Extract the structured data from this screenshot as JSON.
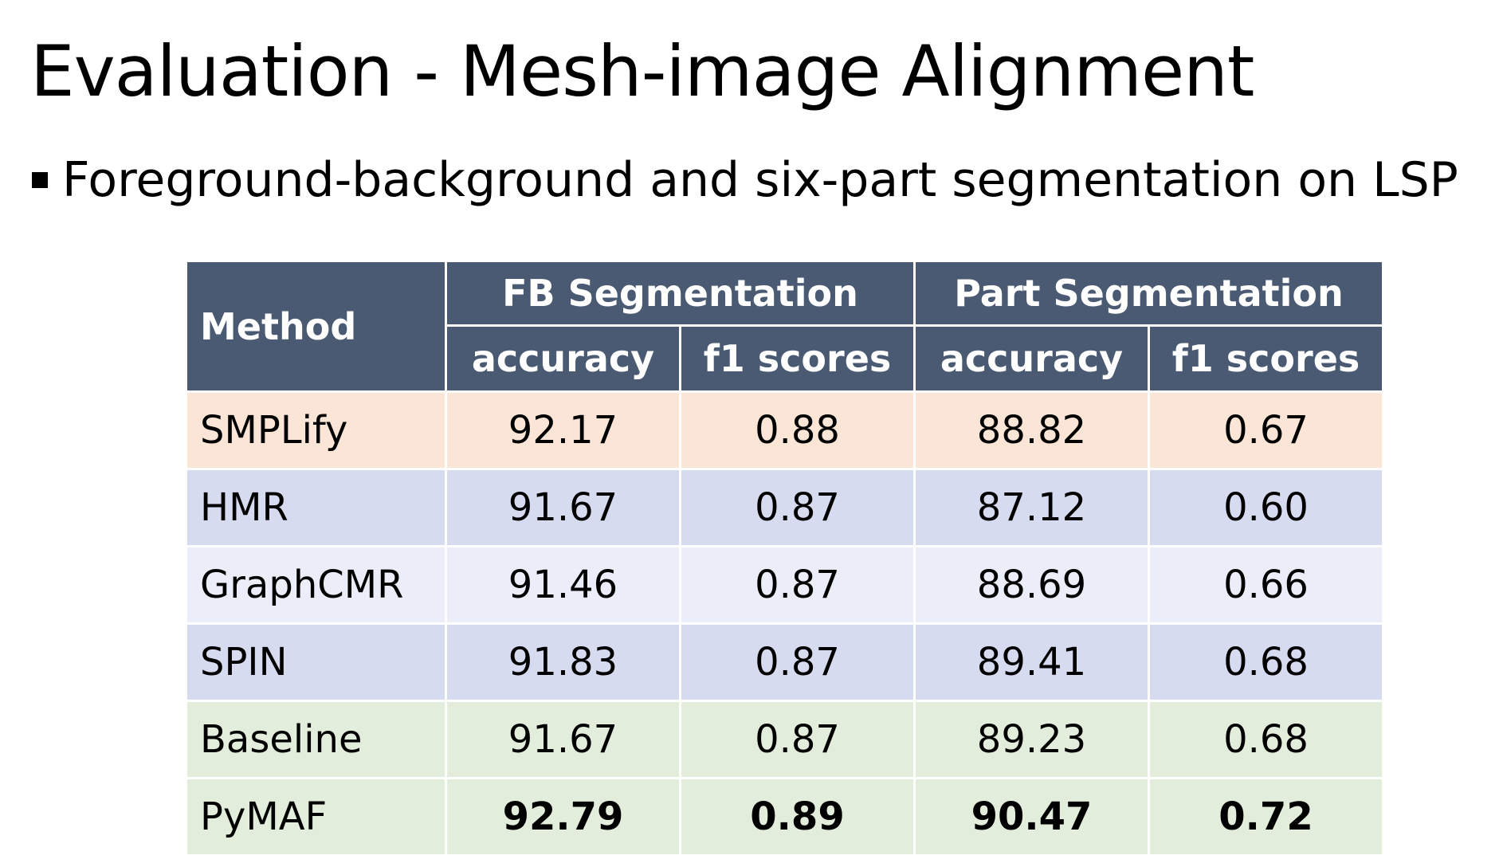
{
  "slide": {
    "title": "Evaluation - Mesh-image Alignment",
    "bullet": "Foreground-background and six-part segmentation on LSP"
  },
  "table": {
    "method_header": "Method",
    "group_headers": [
      "FB Segmentation",
      "Part  Segmentation"
    ],
    "metric_headers": [
      "accuracy",
      "f1 scores",
      "accuracy",
      "f1 scores"
    ],
    "rows": [
      {
        "method": "SMPLify",
        "values": [
          "92.17",
          "0.88",
          "88.82",
          "0.67"
        ],
        "bg": "#fbe5d6",
        "bold": false
      },
      {
        "method": "HMR",
        "values": [
          "91.67",
          "0.87",
          "87.12",
          "0.60"
        ],
        "bg": "#d6dbef",
        "bold": false
      },
      {
        "method": "GraphCMR",
        "values": [
          "91.46",
          "0.87",
          "88.69",
          "0.66"
        ],
        "bg": "#ebedf8",
        "bold": false
      },
      {
        "method": "SPIN",
        "values": [
          "91.83",
          "0.87",
          "89.41",
          "0.68"
        ],
        "bg": "#d6dbef",
        "bold": false
      },
      {
        "method": "Baseline",
        "values": [
          "91.67",
          "0.87",
          "89.23",
          "0.68"
        ],
        "bg": "#e2eedb",
        "bold": false
      },
      {
        "method": "PyMAF",
        "values": [
          "92.79",
          "0.89",
          "90.47",
          "0.72"
        ],
        "bg": "#e2eedb",
        "bold": true
      }
    ]
  },
  "colors": {
    "header_bg": "#4a5a73",
    "header_text": "#ffffff"
  }
}
